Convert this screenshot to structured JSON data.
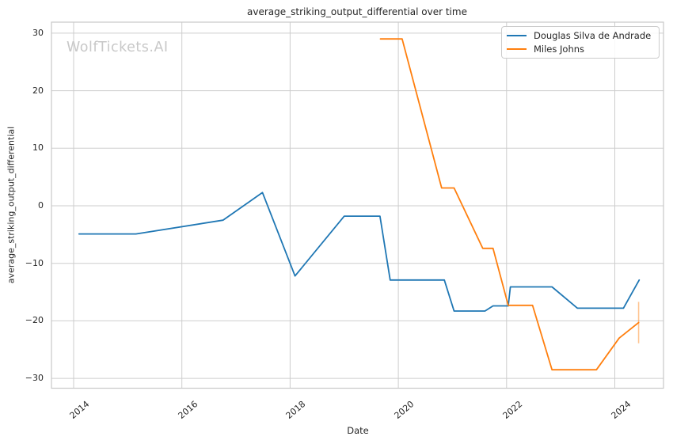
{
  "watermark": {
    "text": "WolfTickets.AI",
    "color": "#c8c8c8"
  },
  "chart_data": {
    "type": "line",
    "title": "average_striking_output_differential over time",
    "xlabel": "Date",
    "ylabel": "average_striking_output_differential",
    "grid": true,
    "background": "#ffffff",
    "grid_color": "#cdcdcd",
    "axes_edge_color": "#c8c8c8",
    "x_axis": {
      "ticks": [
        2014,
        2016,
        2018,
        2020,
        2022,
        2024
      ],
      "tick_labels": [
        "2014",
        "2016",
        "2018",
        "2020",
        "2022",
        "2024"
      ],
      "range": [
        2013.59,
        2024.9
      ]
    },
    "y_axis": {
      "ticks": [
        30,
        20,
        10,
        0,
        -10,
        -20,
        -30
      ],
      "tick_labels": [
        "30",
        "20",
        "10",
        "0",
        "−10",
        "−20",
        "−30"
      ],
      "range": [
        -31.7,
        31.9
      ]
    },
    "legend": {
      "position": "upper right",
      "entries": [
        "Douglas Silva de Andrade",
        "Miles Johns"
      ]
    },
    "series": [
      {
        "name": "Douglas Silva de Andrade",
        "color": "#1f77b4",
        "points": [
          [
            2014.1,
            -4.9
          ],
          [
            2015.15,
            -4.9
          ],
          [
            2016.76,
            -2.5
          ],
          [
            2017.49,
            2.3
          ],
          [
            2018.09,
            -12.2
          ],
          [
            2019.0,
            -1.8
          ],
          [
            2019.66,
            -1.8
          ],
          [
            2019.85,
            -12.9
          ],
          [
            2020.85,
            -12.9
          ],
          [
            2021.03,
            -18.3
          ],
          [
            2021.6,
            -18.3
          ],
          [
            2021.75,
            -17.4
          ],
          [
            2022.03,
            -17.4
          ],
          [
            2022.07,
            -14.1
          ],
          [
            2022.84,
            -14.1
          ],
          [
            2023.31,
            -17.8
          ],
          [
            2024.16,
            -17.8
          ],
          [
            2024.45,
            -12.9
          ]
        ]
      },
      {
        "name": "Miles Johns",
        "color": "#ff7f0e",
        "points": [
          [
            2019.67,
            29.0
          ],
          [
            2020.07,
            29.0
          ],
          [
            2020.8,
            3.1
          ],
          [
            2021.03,
            3.1
          ],
          [
            2021.56,
            -7.4
          ],
          [
            2021.75,
            -7.4
          ],
          [
            2022.03,
            -17.3
          ],
          [
            2022.48,
            -17.3
          ],
          [
            2022.84,
            -28.5
          ],
          [
            2023.66,
            -28.5
          ],
          [
            2024.08,
            -23.0
          ],
          [
            2024.44,
            -20.3
          ]
        ],
        "error_bar": {
          "x": 2024.44,
          "y_low": -23.9,
          "y_high": -16.7,
          "opacity": 0.45
        }
      }
    ]
  }
}
